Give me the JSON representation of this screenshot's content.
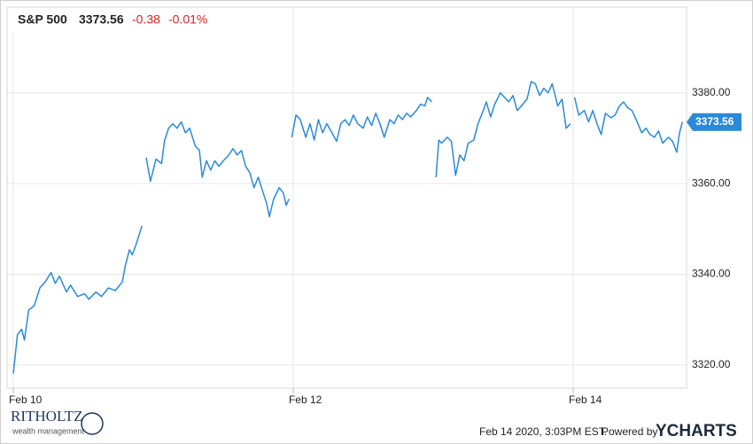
{
  "chart_data": {
    "type": "line",
    "title": "S&P 500",
    "quote": {
      "price": "3373.56",
      "change": "-0.38",
      "change_pct": "-0.01%"
    },
    "xlim": [
      -0.044,
      4.81
    ],
    "xticks": [
      {
        "value": 0,
        "label": "Feb 10"
      },
      {
        "value": 2,
        "label": "Feb 12"
      },
      {
        "value": 4,
        "label": "Feb 14"
      }
    ],
    "ylim": [
      3314.9,
      3398.9
    ],
    "yticks": [
      {
        "value": 3320,
        "label": "3320.00"
      },
      {
        "value": 3340,
        "label": "3340.00"
      },
      {
        "value": 3360,
        "label": "3360.00"
      },
      {
        "value": 3380,
        "label": "3380.00"
      }
    ],
    "grid": true,
    "series": [
      {
        "name": "S&P 500",
        "color": "#2a8ad8",
        "x": [
          0.0,
          0.03,
          0.06,
          0.08,
          0.11,
          0.15,
          0.19,
          0.23,
          0.27,
          0.3,
          0.33,
          0.38,
          0.41,
          0.46,
          0.51,
          0.54,
          0.59,
          0.63,
          0.68,
          0.73,
          0.78,
          0.8,
          0.83,
          0.85,
          0.88,
          0.92,
          null,
          0.95,
          0.98,
          1.02,
          1.06,
          1.08,
          1.11,
          1.14,
          1.17,
          1.2,
          1.23,
          1.26,
          1.3,
          1.33,
          1.35,
          1.38,
          1.41,
          1.44,
          1.47,
          1.5,
          1.54,
          1.57,
          1.6,
          1.63,
          1.66,
          1.69,
          1.72,
          1.75,
          1.78,
          1.81,
          1.83,
          1.86,
          1.9,
          1.93,
          1.95,
          1.97,
          null,
          1.99,
          2.02,
          2.05,
          2.09,
          2.12,
          2.15,
          2.18,
          2.21,
          2.24,
          2.27,
          2.31,
          2.34,
          2.37,
          2.4,
          2.43,
          2.46,
          2.5,
          2.53,
          2.56,
          2.59,
          2.62,
          2.65,
          2.69,
          2.72,
          2.75,
          2.78,
          2.81,
          2.84,
          2.88,
          2.91,
          2.94,
          2.96,
          2.99,
          null,
          3.02,
          3.04,
          3.06,
          3.1,
          3.13,
          3.16,
          3.19,
          3.22,
          3.25,
          3.29,
          3.32,
          3.35,
          3.38,
          3.41,
          3.44,
          3.48,
          3.51,
          3.54,
          3.57,
          3.6,
          3.63,
          3.67,
          3.7,
          3.73,
          3.76,
          3.79,
          3.82,
          3.85,
          3.89,
          3.92,
          3.95,
          3.98,
          null,
          4.01,
          4.04,
          4.08,
          4.11,
          4.14,
          4.17,
          4.2,
          4.23,
          4.27,
          4.3,
          4.33,
          4.36,
          4.39,
          4.42,
          4.45,
          4.49,
          4.52,
          4.55,
          4.58,
          4.61,
          4.64,
          4.68,
          4.71,
          4.74,
          4.76,
          4.78
        ],
        "values": [
          3318.1,
          3326.7,
          3327.9,
          3325.5,
          3332.1,
          3333.1,
          3337.0,
          3338.4,
          3340.4,
          3338.0,
          3339.6,
          3336.1,
          3337.6,
          3335.1,
          3335.7,
          3334.5,
          3336.1,
          3335.1,
          3337.0,
          3336.4,
          3338.4,
          3341.9,
          3345.4,
          3344.3,
          3346.8,
          3350.7,
          null,
          3365.7,
          3360.5,
          3365.4,
          3364.4,
          3369.3,
          3372.2,
          3373.2,
          3372.2,
          3373.6,
          3371.2,
          3372.2,
          3368.3,
          3367.3,
          3361.4,
          3365.0,
          3363.0,
          3365.0,
          3363.8,
          3365.0,
          3366.3,
          3367.7,
          3366.3,
          3367.3,
          3363.8,
          3362.4,
          3359.1,
          3361.4,
          3358.5,
          3355.6,
          3352.7,
          3356.6,
          3359.1,
          3357.9,
          3355.2,
          3356.6,
          null,
          3370.2,
          3375.1,
          3374.1,
          3370.2,
          3373.2,
          3369.6,
          3374.1,
          3371.2,
          3373.2,
          3371.6,
          3369.3,
          3373.2,
          3374.1,
          3372.8,
          3375.1,
          3373.2,
          3372.2,
          3374.7,
          3372.8,
          3375.5,
          3373.2,
          3370.2,
          3374.1,
          3373.2,
          3375.1,
          3374.1,
          3375.5,
          3374.7,
          3376.1,
          3377.5,
          3377.1,
          3379.0,
          3378.0,
          null,
          3361.4,
          3369.6,
          3368.9,
          3370.2,
          3369.3,
          3361.8,
          3366.3,
          3365.0,
          3368.9,
          3369.6,
          3373.2,
          3375.5,
          3378.0,
          3374.7,
          3377.5,
          3380.0,
          3379.0,
          3378.0,
          3379.4,
          3376.1,
          3377.1,
          3378.6,
          3382.5,
          3382.0,
          3379.4,
          3381.0,
          3380.0,
          3382.0,
          3377.1,
          3378.6,
          3372.2,
          3373.2,
          null,
          3379.0,
          3375.1,
          3376.1,
          3373.6,
          3376.1,
          3373.2,
          3370.8,
          3375.5,
          3374.5,
          3375.1,
          3377.1,
          3378.0,
          3376.7,
          3376.1,
          3374.1,
          3371.2,
          3372.2,
          3370.8,
          3370.2,
          3371.6,
          3368.9,
          3370.2,
          3369.3,
          3366.9,
          3371.2,
          3373.56
        ]
      }
    ],
    "footer": {
      "timestamp": "Feb 14 2020, 3:03PM EST.",
      "powered_by": "Powered by",
      "brand": "YCHARTS"
    },
    "logo": {
      "name": "RITHOLTZ",
      "tagline": "wealth management"
    }
  }
}
